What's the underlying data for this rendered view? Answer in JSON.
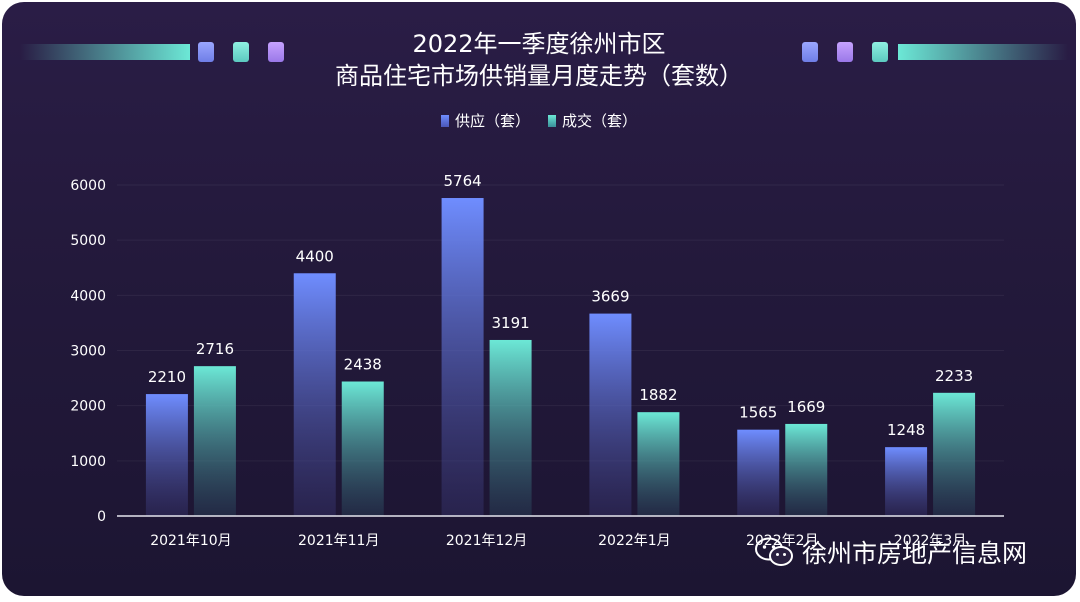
{
  "title_line1": "2022年一季度徐州市区",
  "title_line2": "商品住宅市场供销量月度走势（套数）",
  "legend": {
    "supply": "供应（套）",
    "deal": "成交（套）"
  },
  "watermark": "徐州市房地产信息网",
  "colors": {
    "supply_top": "#6f8dff",
    "supply_bottom": "#3c3a7a",
    "deal_top": "#6ce8d6",
    "deal_bottom": "#2c4e63",
    "chip1": "#8b7cff",
    "chip2": "#6ce8d6",
    "chip3": "#b48cff"
  },
  "chart_data": {
    "type": "bar",
    "title": "2022年一季度徐州市区 商品住宅市场供销量月度走势（套数）",
    "categories": [
      "2021年10月",
      "2021年11月",
      "2021年12月",
      "2022年1月",
      "2022年2月",
      "2022年3月"
    ],
    "series": [
      {
        "name": "供应（套）",
        "values": [
          2210,
          4400,
          5764,
          3669,
          1565,
          1248
        ]
      },
      {
        "name": "成交（套）",
        "values": [
          2716,
          2438,
          3191,
          1882,
          1669,
          2233
        ]
      }
    ],
    "yticks": [
      0,
      1000,
      2000,
      3000,
      4000,
      5000,
      6000
    ],
    "ylim": [
      0,
      6000
    ],
    "xlabel": "",
    "ylabel": "",
    "legend_position": "top-center"
  }
}
